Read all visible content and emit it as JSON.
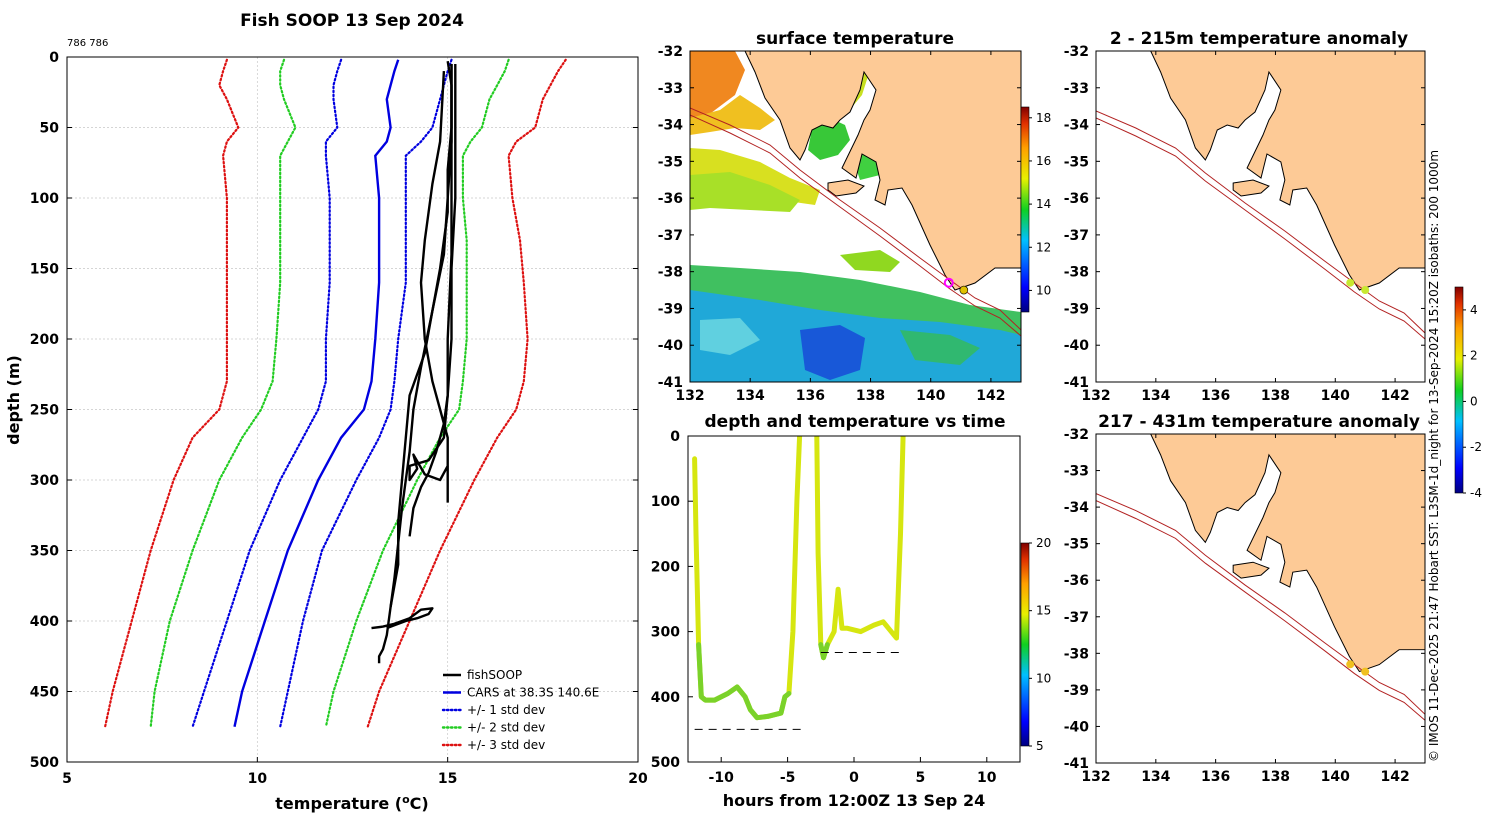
{
  "chart_data": [
    {
      "id": "profile",
      "type": "line",
      "title": "Fish SOOP 13 Sep 2024",
      "corner_label": "786 786",
      "xlabel": "temperature (",
      "xlabel_sup": "o",
      "xlabel_end": "C)",
      "ylabel": "depth (m)",
      "xlim": [
        5,
        20
      ],
      "ylim": [
        500,
        0
      ],
      "xticks": [
        "5",
        "10",
        "15",
        "20"
      ],
      "yticks": [
        "0",
        "50",
        "100",
        "150",
        "200",
        "250",
        "300",
        "350",
        "400",
        "450",
        "500"
      ],
      "grid": true,
      "legend_position": "lower-right",
      "legend": [
        "fishSOOP",
        "CARS at 38.3S 140.6E",
        "+/- 1 std dev",
        "+/- 2 std dev",
        "+/- 3 std dev"
      ],
      "depths": [
        2,
        10,
        20,
        30,
        50,
        60,
        70,
        100,
        130,
        160,
        200,
        230,
        250,
        270,
        300,
        350,
        400,
        450,
        475
      ],
      "series": [
        {
          "name": "CARS at 38.3S 140.6E",
          "style": "solid",
          "color": "#0000e0",
          "temps": [
            13.7,
            13.6,
            13.5,
            13.4,
            13.5,
            13.4,
            13.1,
            13.2,
            13.2,
            13.2,
            13.1,
            13.0,
            12.8,
            12.2,
            11.6,
            10.8,
            10.2,
            9.6,
            9.4
          ]
        },
        {
          "name": "+1 std dev",
          "style": "dotted",
          "color": "#0000e0",
          "temps": [
            15.1,
            15.0,
            14.9,
            14.8,
            14.6,
            14.3,
            13.9,
            13.9,
            13.9,
            13.9,
            13.7,
            13.6,
            13.5,
            13.2,
            12.6,
            11.7,
            11.2,
            10.8,
            10.6
          ]
        },
        {
          "name": "-1 std dev",
          "style": "dotted",
          "color": "#0000e0",
          "temps": [
            12.2,
            12.1,
            12.0,
            12.0,
            12.1,
            11.8,
            11.8,
            11.9,
            11.9,
            11.9,
            11.8,
            11.8,
            11.6,
            11.2,
            10.6,
            9.8,
            9.2,
            8.6,
            8.3
          ]
        },
        {
          "name": "+2 std dev",
          "style": "dotted",
          "color": "#22cc22",
          "temps": [
            16.6,
            16.5,
            16.3,
            16.1,
            15.9,
            15.6,
            15.4,
            15.4,
            15.5,
            15.5,
            15.5,
            15.4,
            15.3,
            14.8,
            14.2,
            13.3,
            12.6,
            12.0,
            11.8
          ]
        },
        {
          "name": "-2 std dev",
          "style": "dotted",
          "color": "#22cc22",
          "temps": [
            10.7,
            10.6,
            10.6,
            10.7,
            11.0,
            10.8,
            10.6,
            10.6,
            10.6,
            10.6,
            10.5,
            10.4,
            10.1,
            9.6,
            9.0,
            8.3,
            7.7,
            7.3,
            7.2
          ]
        },
        {
          "name": "+3 std dev",
          "style": "dotted",
          "color": "#dd1111",
          "temps": [
            18.1,
            17.9,
            17.7,
            17.5,
            17.3,
            16.8,
            16.6,
            16.7,
            16.9,
            17.0,
            17.1,
            17.0,
            16.8,
            16.3,
            15.7,
            14.8,
            14.0,
            13.2,
            12.9
          ]
        },
        {
          "name": "-3 std dev",
          "style": "dotted",
          "color": "#dd1111",
          "temps": [
            9.2,
            9.1,
            9.0,
            9.2,
            9.5,
            9.2,
            9.1,
            9.2,
            9.2,
            9.2,
            9.2,
            9.2,
            9.0,
            8.3,
            7.8,
            7.2,
            6.7,
            6.2,
            6.0
          ]
        }
      ],
      "fishsoop": {
        "name": "fishSOOP",
        "color": "#000000",
        "profiles": [
          {
            "t": [
              15.0,
              15.1,
              15.1,
              15.0,
              15.0,
              14.8,
              14.6,
              14.4,
              14.0,
              13.9,
              13.8,
              13.7,
              13.7,
              13.5,
              13.4,
              13.3,
              13.2,
              13.2
            ],
            "d": [
              3,
              20,
              50,
              80,
              110,
              150,
              180,
              210,
              240,
              270,
              300,
              330,
              360,
              390,
              410,
              420,
              425,
              430
            ]
          },
          {
            "t": [
              15.1,
              15.1,
              15.0,
              14.9,
              14.6,
              14.3,
              14.1,
              14.0,
              13.9,
              13.8,
              13.7,
              13.6,
              13.5
            ],
            "d": [
              5,
              60,
              100,
              140,
              180,
              220,
              250,
              280,
              300,
              320,
              345,
              370,
              390
            ]
          },
          {
            "t": [
              15.2,
              15.2,
              15.2,
              15.1,
              15.1,
              15.0,
              14.9,
              14.7,
              14.5,
              14.3,
              14.1,
              14.0
            ],
            "d": [
              5,
              50,
              100,
              150,
              200,
              240,
              260,
              280,
              295,
              305,
              320,
              340
            ]
          },
          {
            "t": [
              15.1,
              15.1,
              15.1,
              15.0,
              15.0,
              14.9,
              14.5,
              14.0,
              14.0,
              14.2,
              14.1,
              14.4,
              14.8,
              15.0
            ],
            "d": [
              5,
              80,
              140,
              200,
              240,
              270,
              286,
              290,
              300,
              292,
              282,
              296,
              300,
              290
            ]
          },
          {
            "t": [
              14.9,
              14.8,
              14.6,
              14.5,
              14.4,
              14.3,
              14.4,
              14.6,
              14.8,
              15.0,
              15.0
            ],
            "d": [
              10,
              60,
              90,
              110,
              130,
              160,
              200,
              230,
              250,
              270,
              316
            ]
          },
          {
            "t": [
              13.0,
              13.3,
              13.6,
              14.0,
              14.3,
              14.6,
              14.5,
              14.2,
              13.9,
              13.6,
              13.4
            ],
            "d": [
              405,
              404,
              402,
              398,
              392,
              391,
              395,
              398,
              400,
              403,
              405
            ]
          }
        ]
      }
    },
    {
      "id": "surface-map",
      "type": "heatmap",
      "title": "surface temperature",
      "xlim": [
        132,
        143
      ],
      "ylim": [
        -41,
        -32
      ],
      "xticks": [
        "132",
        "134",
        "136",
        "138",
        "140",
        "142"
      ],
      "yticks": [
        "-32",
        "-33",
        "-34",
        "-35",
        "-36",
        "-37",
        "-38",
        "-39",
        "-40",
        "-41"
      ],
      "colorbar": {
        "min": 9,
        "max": 18.5,
        "ticks": [
          "18",
          "16",
          "14",
          "12",
          "10"
        ],
        "tick_values": [
          18,
          16,
          14,
          12,
          10
        ]
      },
      "vessel_positions": [
        {
          "lon": 140.6,
          "lat": -38.3,
          "marker": "ring"
        },
        {
          "lon": 141.1,
          "lat": -38.5,
          "marker": "dot"
        }
      ]
    },
    {
      "id": "time-depth",
      "type": "scatter",
      "title": "depth and temperature vs time",
      "xlabel": "hours from 12:00Z 13 Sep 24",
      "xlim": [
        -12.5,
        12.5
      ],
      "ylim": [
        500,
        0
      ],
      "xticks": [
        "-10",
        "-5",
        "0",
        "5",
        "10"
      ],
      "yticks": [
        "0",
        "100",
        "200",
        "300",
        "400",
        "500"
      ],
      "colorbar": {
        "min": 5,
        "max": 20,
        "ticks": [
          "20",
          "15",
          "10",
          "5"
        ],
        "tick_values": [
          20,
          15,
          10,
          5
        ]
      },
      "tracks": [
        {
          "x": [
            -12.0,
            -11.9,
            -11.7,
            -11.5,
            -11.2,
            -10.5,
            -9.5,
            -8.8,
            -8.2,
            -7.8,
            -7.3,
            -6.5,
            -5.5,
            -5.2,
            -4.9,
            -4.6,
            -4.3,
            -4.1
          ],
          "y": [
            35,
            150,
            320,
            400,
            405,
            405,
            395,
            385,
            400,
            420,
            432,
            430,
            425,
            400,
            395,
            300,
            100,
            0
          ]
        },
        {
          "x": [
            -2.8,
            -2.7,
            -2.5,
            -2.3,
            -2.0,
            -1.5,
            -1.2,
            -0.9,
            -0.5,
            0.5,
            1.5,
            2.2,
            2.8,
            3.2,
            3.5,
            3.7
          ],
          "y": [
            0,
            180,
            320,
            340,
            320,
            300,
            235,
            295,
            295,
            300,
            290,
            285,
            300,
            310,
            150,
            0
          ]
        }
      ],
      "bottom_marks": [
        {
          "x1": -12.0,
          "x2": -4.0,
          "y": 450
        },
        {
          "x1": -2.5,
          "x2": 3.8,
          "y": 332
        }
      ]
    },
    {
      "id": "anomaly-upper",
      "type": "heatmap",
      "title": "2 - 215m temperature anomaly",
      "xlim": [
        132,
        143
      ],
      "ylim": [
        -41,
        -32
      ],
      "xticks": [
        "132",
        "134",
        "136",
        "138",
        "140",
        "142"
      ],
      "yticks": [
        "-32",
        "-33",
        "-34",
        "-35",
        "-36",
        "-37",
        "-38",
        "-39",
        "-40",
        "-41"
      ],
      "colorbar": {
        "min": -4,
        "max": 5,
        "ticks": [
          "4",
          "2",
          "0",
          "-2",
          "-4"
        ],
        "tick_values": [
          4,
          2,
          0,
          -2,
          -4
        ]
      },
      "points": [
        {
          "lon": 140.5,
          "lat": -38.3
        },
        {
          "lon": 141.0,
          "lat": -38.5
        }
      ]
    },
    {
      "id": "anomaly-lower",
      "type": "heatmap",
      "title": "217 - 431m temperature anomaly",
      "xlim": [
        132,
        143
      ],
      "ylim": [
        -41,
        -32
      ],
      "xticks": [
        "132",
        "134",
        "136",
        "138",
        "140",
        "142"
      ],
      "yticks": [
        "-32",
        "-33",
        "-34",
        "-35",
        "-36",
        "-37",
        "-38",
        "-39",
        "-40",
        "-41"
      ],
      "points": [
        {
          "lon": 140.5,
          "lat": -38.3
        },
        {
          "lon": 141.0,
          "lat": -38.5
        }
      ]
    }
  ],
  "credit": "© IMOS 11-Dec-2025 21:47 Hobart SST: L3SM-1d_night for 13-Sep-2024 15:20Z isobaths: 200  1000m",
  "colors": {
    "land": "#fdca96",
    "isobath": "#b22222",
    "coast": "#000000"
  }
}
